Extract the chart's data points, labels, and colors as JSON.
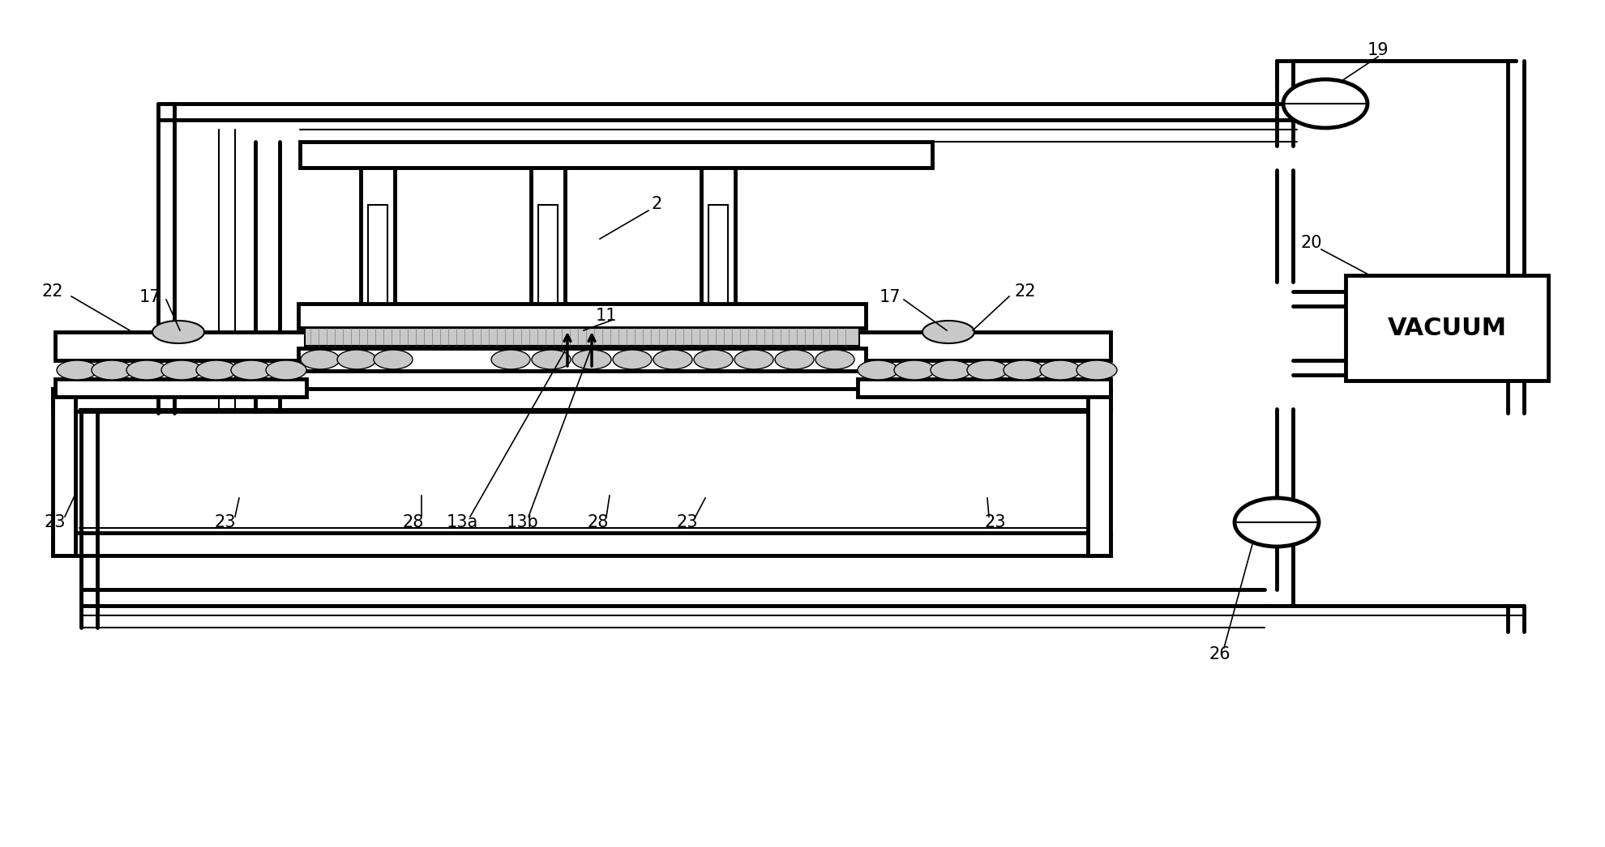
{
  "bg_color": "#ffffff",
  "line_color": "#000000",
  "vacuum_box_label": "VACUUM",
  "lw_thick": 3.5,
  "lw_thin": 1.5,
  "gray_fill": "#c8c8c8",
  "white_fill": "#ffffff"
}
